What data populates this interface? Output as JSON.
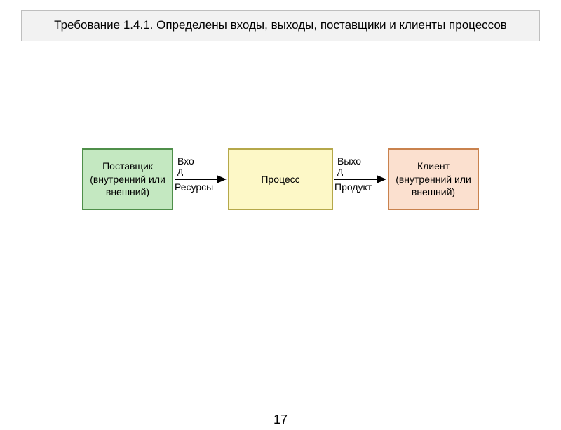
{
  "title": {
    "text": "Требование 1.4.1. Определены входы, выходы, поставщики и клиенты процессов",
    "background_color": "#f2f2f2",
    "border_color": "#bfbfbf",
    "text_color": "#000000"
  },
  "diagram": {
    "type": "flowchart",
    "nodes": [
      {
        "id": "supplier",
        "label": "Поставщик (внутренний или внешний)",
        "fill_color": "#c4e8c1",
        "border_color": "#4f8f4a",
        "width": 130,
        "height": 88
      },
      {
        "id": "process",
        "label": "Процесс",
        "fill_color": "#fdf8c7",
        "border_color": "#b5a84a",
        "width": 150,
        "height": 88
      },
      {
        "id": "client",
        "label": "Клиент (внутренний или внешний)",
        "fill_color": "#fbe0cf",
        "border_color": "#c9824e",
        "width": 130,
        "height": 88
      }
    ],
    "edges": [
      {
        "from": "supplier",
        "to": "process",
        "label_top_line1": "Вхо",
        "label_top_line2": "д",
        "label_bottom": "Ресурсы",
        "arrow_color": "#000000",
        "line_width": 2
      },
      {
        "from": "process",
        "to": "client",
        "label_top_line1": "Выхо",
        "label_top_line2": "д",
        "label_bottom": "Продукт",
        "arrow_color": "#000000",
        "line_width": 2
      }
    ]
  },
  "page_number": "17",
  "text_color": "#000000"
}
